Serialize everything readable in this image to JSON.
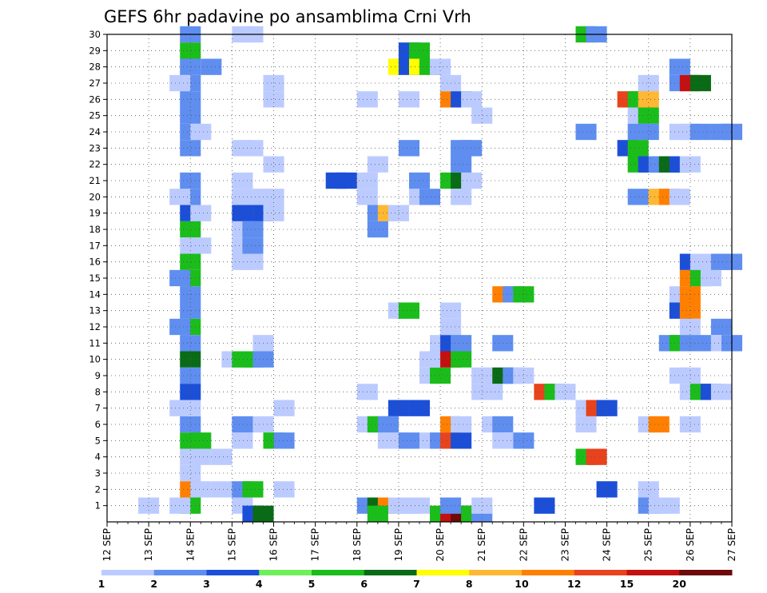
{
  "chart_data": {
    "type": "heatmap",
    "title": "GEFS 6hr padavine po ansamblima Crni Vrh",
    "x_ticks": [
      "12 SEP",
      "13 SEP",
      "14 SEP",
      "15 SEP",
      "16 SEP",
      "17 SEP",
      "18 SEP",
      "19 SEP",
      "20 SEP",
      "21 SEP",
      "22 SEP",
      "23 SEP",
      "24 SEP",
      "25 SEP",
      "26 SEP",
      "27 SEP"
    ],
    "y_ticks": [
      "1",
      "2",
      "3",
      "4",
      "5",
      "6",
      "7",
      "8",
      "9",
      "10",
      "11",
      "12",
      "13",
      "14",
      "15",
      "16",
      "17",
      "18",
      "19",
      "20",
      "21",
      "22",
      "23",
      "24",
      "25",
      "26",
      "27",
      "28",
      "29",
      "30"
    ],
    "ylim": [
      0,
      30
    ],
    "x_steps_per_day": 4,
    "grid": true,
    "colorbar": {
      "labels": [
        "1",
        "2",
        "3",
        "4",
        "5",
        "6",
        "7",
        "8",
        "10",
        "12",
        "15",
        "20"
      ],
      "colors": [
        "#bccbff",
        "#5f8ef0",
        "#1c4fd8",
        "#6fef5a",
        "#1bbd1b",
        "#0a6b16",
        "#ffff00",
        "#ffb833",
        "#ff8000",
        "#e8431c",
        "#c41010",
        "#6e0a0a"
      ]
    },
    "cell_size_steps": 2,
    "cells": [
      [
        1.5,
        1,
        1
      ],
      [
        3.5,
        1,
        5
      ],
      [
        3.5,
        2,
        10
      ],
      [
        3.5,
        5,
        5
      ],
      [
        3.5,
        6,
        2
      ],
      [
        3.5,
        10,
        6
      ],
      [
        3.5,
        12,
        5
      ],
      [
        3.5,
        13,
        2
      ],
      [
        3.5,
        14,
        2
      ],
      [
        3.5,
        15,
        5
      ],
      [
        3.5,
        16,
        5
      ],
      [
        3.5,
        18,
        5
      ],
      [
        3.5,
        19,
        3
      ],
      [
        3.5,
        20,
        2
      ],
      [
        3.5,
        21,
        2
      ],
      [
        3.5,
        23,
        2
      ],
      [
        3.5,
        24,
        2
      ],
      [
        3.5,
        25,
        2
      ],
      [
        3.5,
        26,
        2
      ],
      [
        3.5,
        27,
        2
      ],
      [
        3.5,
        28,
        2
      ],
      [
        3.5,
        29,
        5
      ],
      [
        3.5,
        30,
        2
      ],
      [
        3,
        1,
        1
      ],
      [
        3,
        12,
        2
      ],
      [
        3,
        15,
        2
      ],
      [
        3,
        20,
        1
      ],
      [
        3,
        27,
        1
      ],
      [
        3,
        7,
        1
      ],
      [
        3.5,
        3,
        1
      ],
      [
        3.5,
        4,
        1
      ],
      [
        3.5,
        7,
        1
      ],
      [
        3.5,
        17,
        1
      ],
      [
        3.5,
        11,
        2
      ],
      [
        3.5,
        9,
        2
      ],
      [
        3.5,
        8,
        3
      ],
      [
        4,
        2,
        1
      ],
      [
        4,
        5,
        5
      ],
      [
        4,
        4,
        1
      ],
      [
        4,
        17,
        1
      ],
      [
        4,
        19,
        1
      ],
      [
        4,
        24,
        1
      ],
      [
        4.5,
        28,
        2
      ],
      [
        5,
        4,
        1
      ],
      [
        5,
        2,
        1
      ],
      [
        6,
        1,
        1
      ],
      [
        6,
        2,
        2
      ],
      [
        6.5,
        2,
        5
      ],
      [
        6,
        5,
        1
      ],
      [
        6,
        6,
        2
      ],
      [
        6,
        16,
        1
      ],
      [
        6,
        17,
        1
      ],
      [
        6,
        18,
        1
      ],
      [
        6,
        19,
        3
      ],
      [
        6,
        20,
        1
      ],
      [
        6,
        21,
        1
      ],
      [
        6,
        23,
        1
      ],
      [
        6.5,
        18,
        2
      ],
      [
        6.5,
        17,
        2
      ],
      [
        6.5,
        16,
        1
      ],
      [
        6.5,
        23,
        1
      ],
      [
        6.5,
        30,
        1
      ],
      [
        6,
        30,
        1
      ],
      [
        5.5,
        10,
        1
      ],
      [
        6,
        10,
        5
      ],
      [
        6.5,
        10,
        5
      ],
      [
        7,
        10,
        2
      ],
      [
        7,
        11,
        1
      ],
      [
        7,
        19,
        3
      ],
      [
        7.5,
        19,
        1
      ],
      [
        7,
        20,
        1
      ],
      [
        7.5,
        20,
        1
      ],
      [
        7,
        6,
        1
      ],
      [
        7.5,
        5,
        5
      ],
      [
        8,
        5,
        2
      ],
      [
        8,
        7,
        1
      ],
      [
        7.5,
        22,
        1
      ],
      [
        7.5,
        26,
        1
      ],
      [
        7.5,
        27,
        1
      ],
      [
        8,
        2,
        1
      ],
      [
        6.5,
        0.5,
        3
      ],
      [
        7,
        0.5,
        6
      ],
      [
        10.5,
        21,
        3
      ],
      [
        11,
        21,
        3
      ],
      [
        12,
        1,
        2
      ],
      [
        12,
        6,
        1
      ],
      [
        12.5,
        6,
        5
      ],
      [
        12,
        8,
        1
      ],
      [
        12,
        20,
        1
      ],
      [
        12,
        21,
        1
      ],
      [
        12.5,
        22,
        1
      ],
      [
        12,
        26,
        1
      ],
      [
        12.5,
        18,
        2
      ],
      [
        12.5,
        19,
        2
      ],
      [
        13,
        19,
        8
      ],
      [
        13.5,
        19,
        1
      ],
      [
        12.5,
        1,
        6
      ],
      [
        13,
        1,
        10
      ],
      [
        13.5,
        1,
        1
      ],
      [
        14,
        1,
        1
      ],
      [
        14.5,
        1,
        1
      ],
      [
        12.5,
        0.5,
        5
      ],
      [
        13,
        5,
        1
      ],
      [
        13.5,
        5,
        1
      ],
      [
        14,
        5,
        2
      ],
      [
        13,
        6,
        2
      ],
      [
        13.5,
        7,
        3
      ],
      [
        13.5,
        13,
        1
      ],
      [
        14,
        13,
        5
      ],
      [
        13.5,
        28,
        7
      ],
      [
        14,
        28,
        3
      ],
      [
        14.5,
        28,
        7
      ],
      [
        15,
        28,
        5
      ],
      [
        15.5,
        28,
        1
      ],
      [
        14,
        29,
        3
      ],
      [
        14.5,
        29,
        5
      ],
      [
        14,
        23,
        2
      ],
      [
        14,
        26,
        1
      ],
      [
        14.5,
        7,
        3
      ],
      [
        14.5,
        20,
        1
      ],
      [
        15,
        20,
        2
      ],
      [
        14.5,
        21,
        2
      ],
      [
        15,
        9,
        1
      ],
      [
        15.5,
        9,
        5
      ],
      [
        15,
        10,
        1
      ],
      [
        15.5,
        10,
        1
      ],
      [
        15.5,
        11,
        1
      ],
      [
        15,
        5,
        1
      ],
      [
        15.5,
        5,
        2
      ],
      [
        16,
        5,
        12
      ],
      [
        16.5,
        5,
        3
      ],
      [
        16,
        6,
        10
      ],
      [
        16.5,
        6,
        1
      ],
      [
        16,
        10,
        15
      ],
      [
        16.5,
        10,
        5
      ],
      [
        16,
        11,
        3
      ],
      [
        16.5,
        11,
        2
      ],
      [
        16,
        12,
        1
      ],
      [
        16,
        13,
        1
      ],
      [
        15.5,
        0.5,
        5
      ],
      [
        16,
        0.5,
        15
      ],
      [
        16.5,
        0.5,
        20
      ],
      [
        17,
        0.5,
        5
      ],
      [
        17.5,
        0.5,
        2
      ],
      [
        16,
        1,
        2
      ],
      [
        16,
        21,
        5
      ],
      [
        16.5,
        21,
        6
      ],
      [
        17,
        21,
        1
      ],
      [
        16.5,
        22,
        2
      ],
      [
        16.5,
        23,
        2
      ],
      [
        17,
        23,
        2
      ],
      [
        16,
        26,
        10
      ],
      [
        16.5,
        26,
        3
      ],
      [
        17,
        26,
        1
      ],
      [
        16.5,
        20,
        1
      ],
      [
        16,
        27,
        1
      ],
      [
        17.5,
        25,
        1
      ],
      [
        17.5,
        1,
        1
      ],
      [
        17.5,
        8,
        1
      ],
      [
        17.5,
        9,
        1
      ],
      [
        18,
        8,
        1
      ],
      [
        18,
        9,
        1
      ],
      [
        18,
        6,
        1
      ],
      [
        18.5,
        6,
        2
      ],
      [
        18.5,
        5,
        1
      ],
      [
        18.5,
        11,
        2
      ],
      [
        18.5,
        9,
        6
      ],
      [
        19,
        9,
        2
      ],
      [
        18.5,
        14,
        10
      ],
      [
        19,
        14,
        2
      ],
      [
        19.5,
        14,
        5
      ],
      [
        19.5,
        9,
        1
      ],
      [
        19.5,
        5,
        2
      ],
      [
        20.5,
        8,
        12
      ],
      [
        21,
        8,
        5
      ],
      [
        21.5,
        8,
        1
      ],
      [
        20.5,
        1,
        3
      ],
      [
        22.5,
        4,
        5
      ],
      [
        23,
        4,
        12
      ],
      [
        22.5,
        6,
        1
      ],
      [
        22.5,
        7,
        1
      ],
      [
        23,
        7,
        12
      ],
      [
        23.5,
        7,
        3
      ],
      [
        23.5,
        2,
        3
      ],
      [
        22.5,
        30,
        5
      ],
      [
        23,
        30,
        2
      ],
      [
        22.5,
        24,
        2
      ],
      [
        24.5,
        26,
        12
      ],
      [
        25,
        26,
        5
      ],
      [
        25.5,
        26,
        8
      ],
      [
        25,
        25,
        1
      ],
      [
        25.5,
        25,
        5
      ],
      [
        25,
        24,
        2
      ],
      [
        25.5,
        24,
        2
      ],
      [
        24.5,
        23,
        3
      ],
      [
        25,
        23,
        5
      ],
      [
        25,
        22,
        5
      ],
      [
        25.5,
        22,
        3
      ],
      [
        26,
        22,
        2
      ],
      [
        26.5,
        22,
        6
      ],
      [
        25,
        20,
        2
      ],
      [
        26,
        20,
        8
      ],
      [
        26.5,
        20,
        10
      ],
      [
        27,
        20,
        1
      ],
      [
        25.5,
        27,
        1
      ],
      [
        25.5,
        1,
        2
      ],
      [
        26,
        1,
        1
      ],
      [
        26.5,
        1,
        1
      ],
      [
        25.5,
        2,
        1
      ],
      [
        25.5,
        6,
        1
      ],
      [
        26,
        6,
        10
      ],
      [
        26.5,
        11,
        2
      ],
      [
        27,
        11,
        5
      ],
      [
        27.5,
        11,
        2
      ],
      [
        28,
        11,
        2
      ],
      [
        27,
        13,
        3
      ],
      [
        27.5,
        13,
        10
      ],
      [
        27.5,
        12,
        1
      ],
      [
        27,
        14,
        1
      ],
      [
        27.5,
        14,
        10
      ],
      [
        27.5,
        15,
        10
      ],
      [
        28,
        15,
        5
      ],
      [
        28.5,
        15,
        1
      ],
      [
        27.5,
        16,
        3
      ],
      [
        28,
        16,
        1
      ],
      [
        29,
        16,
        2
      ],
      [
        29.5,
        16,
        2
      ],
      [
        27,
        22,
        3
      ],
      [
        27.5,
        22,
        1
      ],
      [
        27,
        24,
        1
      ],
      [
        27.5,
        24,
        1
      ],
      [
        28,
        24,
        2
      ],
      [
        29,
        24,
        2
      ],
      [
        29.5,
        24,
        2
      ],
      [
        27,
        27,
        2
      ],
      [
        27.5,
        27,
        15
      ],
      [
        28,
        27,
        6
      ],
      [
        27,
        28,
        2
      ],
      [
        27,
        9,
        1
      ],
      [
        27.5,
        9,
        1
      ],
      [
        27.5,
        8,
        1
      ],
      [
        28,
        8,
        5
      ],
      [
        28.5,
        8,
        3
      ],
      [
        29,
        8,
        1
      ],
      [
        27.5,
        6,
        1
      ],
      [
        29,
        12,
        2
      ],
      [
        29,
        11,
        1
      ],
      [
        29.5,
        11,
        2
      ]
    ]
  }
}
